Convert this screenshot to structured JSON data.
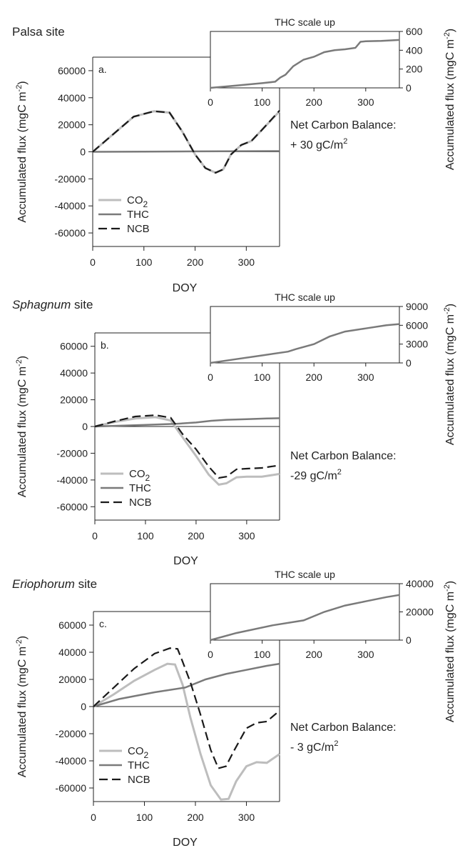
{
  "colors": {
    "CO2": "#bdbdbd",
    "THC": "#7a7a7a",
    "NCB": "#1a1a1a"
  },
  "chart_data": [
    {
      "type": "line",
      "site_label": "Palsa site",
      "site_italic_part": "",
      "site_rest": "Palsa site",
      "panel_letter": "a.",
      "xlabel": "DOY",
      "ylabel": "Accumulated flux (mgC m",
      "ylabel_sup": "-2",
      "ylabel_close": ")",
      "xlim": [
        0,
        365
      ],
      "ylim": [
        -70000,
        70000
      ],
      "xticks": [
        "0",
        "100",
        "200",
        "300"
      ],
      "yticks": [
        "60000",
        "40000",
        "20000",
        "0",
        "-20000",
        "-40000",
        "-60000"
      ],
      "ytick_values": [
        60000,
        40000,
        20000,
        0,
        -20000,
        -40000,
        -60000
      ],
      "xtick_values": [
        0,
        100,
        200,
        300
      ],
      "legend": [
        "CO",
        "THC",
        "NCB"
      ],
      "legend_sub": "2",
      "net_label": "Net Carbon Balance:",
      "net_value": "+ 30 gC/m",
      "net_sup": "2",
      "series": [
        {
          "name": "CO2",
          "x": [
            0,
            40,
            80,
            120,
            150,
            175,
            200,
            220,
            240,
            255,
            270,
            290,
            310,
            330,
            365
          ],
          "y": [
            0,
            13000,
            26000,
            30000,
            29000,
            15000,
            -2000,
            -12000,
            -15500,
            -13000,
            -2000,
            5000,
            8000,
            16000,
            30000
          ]
        },
        {
          "name": "THC",
          "x": [
            0,
            100,
            200,
            300,
            365
          ],
          "y": [
            0,
            150,
            300,
            450,
            510
          ]
        },
        {
          "name": "NCB",
          "x": [
            0,
            40,
            80,
            120,
            150,
            175,
            200,
            220,
            240,
            255,
            270,
            290,
            310,
            330,
            365
          ],
          "y": [
            0,
            13000,
            26000,
            30000,
            29000,
            15000,
            -2000,
            -12000,
            -15500,
            -13000,
            -2000,
            5000,
            8000,
            16000,
            30500
          ]
        }
      ],
      "inset": {
        "title": "THC scale up",
        "xlim": [
          0,
          365
        ],
        "ylim": [
          0,
          600
        ],
        "xticks": [
          "0",
          "100",
          "200",
          "300"
        ],
        "xtick_values": [
          0,
          100,
          200,
          300
        ],
        "yticks": [
          "0",
          "200",
          "400",
          "600"
        ],
        "ytick_values": [
          0,
          200,
          400,
          600
        ],
        "ylabel": "Accumulated flux (mgC m",
        "ylabel_sup": "-2",
        "ylabel_close": ")",
        "x": [
          0,
          50,
          100,
          125,
          135,
          145,
          160,
          180,
          200,
          220,
          240,
          260,
          280,
          290,
          300,
          330,
          365
        ],
        "y": [
          0,
          25,
          50,
          65,
          110,
          140,
          230,
          300,
          330,
          380,
          400,
          410,
          425,
          490,
          495,
          500,
          510
        ]
      }
    },
    {
      "type": "line",
      "site_label": "Sphagnum site",
      "site_italic_part": "Sphagnum",
      "site_rest": " site",
      "panel_letter": "b.",
      "xlabel": "DOY",
      "ylabel": "Accumulated flux (mgC m",
      "ylabel_sup": "-2",
      "ylabel_close": ")",
      "xlim": [
        0,
        365
      ],
      "ylim": [
        -70000,
        70000
      ],
      "xticks": [
        "0",
        "100",
        "200",
        "300"
      ],
      "yticks": [
        "60000",
        "40000",
        "20000",
        "0",
        "-20000",
        "-40000",
        "-60000"
      ],
      "ytick_values": [
        60000,
        40000,
        20000,
        0,
        -20000,
        -40000,
        -60000
      ],
      "xtick_values": [
        0,
        100,
        200,
        300
      ],
      "legend": [
        "CO",
        "THC",
        "NCB"
      ],
      "legend_sub": "2",
      "net_label": "Net Carbon Balance:",
      "net_value": "-29 gC/m",
      "net_sup": "2",
      "series": [
        {
          "name": "CO2",
          "x": [
            0,
            40,
            80,
            120,
            150,
            175,
            200,
            225,
            245,
            260,
            280,
            300,
            330,
            365
          ],
          "y": [
            0,
            3500,
            6000,
            7000,
            4500,
            -9000,
            -22000,
            -36000,
            -43500,
            -42500,
            -38000,
            -37500,
            -37500,
            -35500
          ]
        },
        {
          "name": "THC",
          "x": [
            0,
            100,
            160,
            200,
            230,
            260,
            300,
            340,
            365
          ],
          "y": [
            0,
            1200,
            2000,
            3000,
            4300,
            5000,
            5500,
            6000,
            6200
          ]
        },
        {
          "name": "NCB",
          "x": [
            0,
            40,
            80,
            120,
            150,
            175,
            200,
            225,
            245,
            260,
            280,
            300,
            330,
            365
          ],
          "y": [
            0,
            4000,
            7500,
            8500,
            6500,
            -6500,
            -17000,
            -30000,
            -38500,
            -37500,
            -32000,
            -31500,
            -31000,
            -29000
          ]
        }
      ],
      "inset": {
        "title": "THC scale up",
        "xlim": [
          0,
          365
        ],
        "ylim": [
          0,
          9000
        ],
        "xticks": [
          "0",
          "100",
          "200",
          "300"
        ],
        "xtick_values": [
          0,
          100,
          200,
          300
        ],
        "yticks": [
          "0",
          "3000",
          "6000",
          "9000"
        ],
        "ytick_values": [
          0,
          3000,
          6000,
          9000
        ],
        "ylabel": "Accumulated flux (mgC m",
        "ylabel_sup": "-2",
        "ylabel_close": ")",
        "x": [
          0,
          50,
          100,
          150,
          165,
          200,
          230,
          260,
          300,
          340,
          365
        ],
        "y": [
          0,
          600,
          1200,
          1800,
          2200,
          3000,
          4200,
          5000,
          5500,
          6000,
          6200
        ]
      }
    },
    {
      "type": "line",
      "site_label": "Eriophorum site",
      "site_italic_part": "Eriophorum",
      "site_rest": " site",
      "panel_letter": "c.",
      "xlabel": "DOY",
      "ylabel": "Accumulated flux (mgC m",
      "ylabel_sup": "-2",
      "ylabel_close": ")",
      "xlim": [
        0,
        365
      ],
      "ylim": [
        -70000,
        70000
      ],
      "xticks": [
        "0",
        "100",
        "200",
        "300"
      ],
      "yticks": [
        "60000",
        "40000",
        "20000",
        "0",
        "-20000",
        "-40000",
        "-60000"
      ],
      "ytick_values": [
        60000,
        40000,
        20000,
        0,
        -20000,
        -40000,
        -60000
      ],
      "xtick_values": [
        0,
        100,
        200,
        300
      ],
      "legend": [
        "CO",
        "THC",
        "NCB"
      ],
      "legend_sub": "2",
      "net_label": "Net Carbon Balance:",
      "net_value": "- 3 gC/m",
      "net_sup": "2",
      "series": [
        {
          "name": "CO2",
          "x": [
            0,
            40,
            80,
            120,
            145,
            160,
            175,
            190,
            210,
            230,
            250,
            265,
            280,
            300,
            320,
            340,
            365
          ],
          "y": [
            0,
            9000,
            19000,
            27000,
            31500,
            31000,
            16000,
            -8000,
            -35000,
            -58000,
            -68500,
            -68000,
            -55000,
            -44000,
            -41000,
            -41500,
            -35000
          ]
        },
        {
          "name": "THC",
          "x": [
            0,
            50,
            120,
            180,
            220,
            260,
            300,
            340,
            365
          ],
          "y": [
            0,
            5500,
            10500,
            14000,
            20000,
            24000,
            27000,
            30000,
            31500
          ]
        },
        {
          "name": "NCB",
          "x": [
            0,
            40,
            80,
            120,
            150,
            165,
            175,
            190,
            210,
            230,
            245,
            260,
            275,
            300,
            320,
            340,
            365
          ],
          "y": [
            0,
            14000,
            28000,
            39000,
            43000,
            42500,
            33000,
            18000,
            -6000,
            -32000,
            -45500,
            -44000,
            -33000,
            -16000,
            -12000,
            -11000,
            -3000
          ]
        }
      ],
      "inset": {
        "title": "THC scale up",
        "xlim": [
          0,
          365
        ],
        "ylim": [
          0,
          40000
        ],
        "xticks": [
          "0",
          "100",
          "200",
          "300"
        ],
        "xtick_values": [
          0,
          100,
          200,
          300
        ],
        "yticks": [
          "0",
          "20000",
          "40000"
        ],
        "ytick_values": [
          0,
          20000,
          40000
        ],
        "ylabel": "Accumulated flux (mgC m",
        "ylabel_sup": "-2",
        "ylabel_close": ")",
        "x": [
          0,
          50,
          120,
          180,
          220,
          260,
          300,
          340,
          365
        ],
        "y": [
          0,
          5000,
          10500,
          14000,
          20000,
          24500,
          27500,
          30500,
          32000
        ]
      }
    }
  ]
}
